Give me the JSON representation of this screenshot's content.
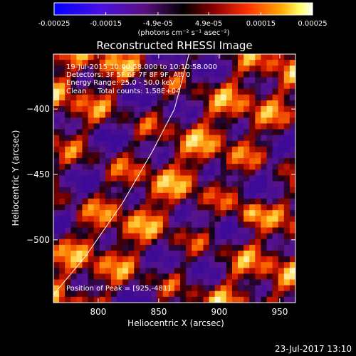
{
  "chart_data": {
    "type": "heatmap",
    "title": "Reconstructed RHESSI Image",
    "xlabel": "Heliocentric X (arcsec)",
    "ylabel": "Heliocentric Y (arcsec)",
    "xlim": [
      763,
      963
    ],
    "ylim": [
      -548,
      -358
    ],
    "x_ticks": [
      800,
      850,
      900,
      950
    ],
    "y_ticks": [
      -400,
      -450,
      -500
    ],
    "colorbar": {
      "ticks": [
        "-0.00025",
        "-0.00015",
        "-4.9e-05",
        "4.9e-05",
        "0.00015",
        "0.00025"
      ],
      "unit_label": "(photons cm⁻² s⁻¹ asec⁻²)",
      "range": [
        -0.00025,
        0.00025
      ],
      "colormap": [
        "#0000ff",
        "#6a1fd0",
        "#000000",
        "#8b0000",
        "#ff3300",
        "#ff9900",
        "#ffff66",
        "#ffffff"
      ]
    },
    "annotations": {
      "time_range": "19-Jul-2015 10:00:58.000 to 10:10:58.000",
      "detectors": "Detectors: 3F 5F 6F 7F 8F 9F, Att 0",
      "energy": "Energy Range: 25.0 - 50.0 keV",
      "method": "Clean     Total counts: 1.58E+04",
      "peak": "Position of Peak = [925,-481]"
    },
    "limb": [
      [
        763,
        -542
      ],
      [
        790,
        -512
      ],
      [
        820,
        -472
      ],
      [
        845,
        -432
      ],
      [
        863,
        -400
      ],
      [
        875,
        -358
      ]
    ],
    "peak": [
      925,
      -481
    ],
    "timestamp": "23-Jul-2017 13:10"
  }
}
